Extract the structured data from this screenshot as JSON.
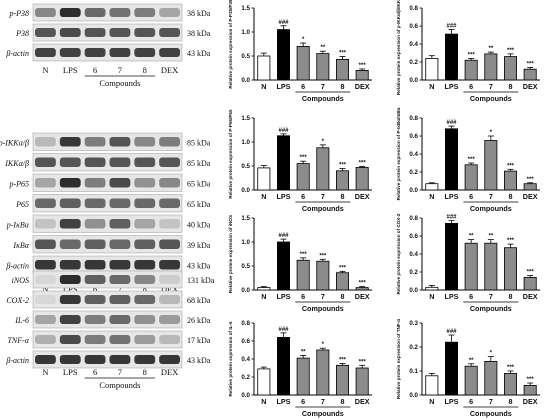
{
  "x_category_labels": [
    "N",
    "LPS",
    "6",
    "7",
    "8",
    "DEX"
  ],
  "compounds_label": "Compounds",
  "blots": [
    {
      "lanes": [
        "N",
        "LPS",
        "6",
        "7",
        "8",
        "DEX"
      ],
      "compounds_label": "Compounds",
      "rows": [
        {
          "label": "p-P38",
          "kda": "38 kDa"
        },
        {
          "label": "P38",
          "kda": "38 kDa"
        },
        {
          "label": "β-actin",
          "kda": "43 kDa"
        }
      ]
    },
    {
      "lanes": [
        "N",
        "LPS",
        "6",
        "7",
        "8",
        "DEX"
      ],
      "compounds_label": "Compounds",
      "rows": [
        {
          "label": "p-IKKα/β",
          "kda": "85 kDa"
        },
        {
          "label": "IKKα/β",
          "kda": "85 kDa"
        },
        {
          "label": "p-P65",
          "kda": "65 kDa"
        },
        {
          "label": "P65",
          "kda": "65 kDa"
        },
        {
          "label": "p-IκBα",
          "kda": "40 kDa"
        },
        {
          "label": "IκBα",
          "kda": "39 kDa"
        },
        {
          "label": "β-actin",
          "kda": "43 kDa"
        }
      ]
    },
    {
      "lanes": [
        "N",
        "LPS",
        "6",
        "7",
        "8",
        "DEX"
      ],
      "compounds_label": "Compounds",
      "rows": [
        {
          "label": "iNOS",
          "kda": "131 kDa"
        },
        {
          "label": "COX-2",
          "kda": "68 kDa"
        },
        {
          "label": "IL-6",
          "kda": "26 kDa"
        },
        {
          "label": "TNF-α",
          "kda": "17 kDa"
        },
        {
          "label": "β-actin",
          "kda": "43 kDa"
        }
      ]
    }
  ],
  "chart_data": [
    {
      "type": "bar",
      "ylabel": "Relative protein expression of P-P38/P38",
      "categories": [
        "N",
        "LPS",
        "6",
        "7",
        "8",
        "DEX"
      ],
      "values": [
        0.5,
        1.05,
        0.7,
        0.55,
        0.43,
        0.2
      ],
      "errors": [
        0.06,
        0.08,
        0.07,
        0.05,
        0.06,
        0.03
      ],
      "sig": [
        "",
        "###",
        "*",
        "**",
        "***",
        "***"
      ],
      "ylim": [
        0,
        1.5
      ],
      "yticks": [
        "0.0",
        "0.5",
        "1.0",
        "1.5"
      ],
      "xlabel": "Compounds"
    },
    {
      "type": "bar",
      "ylabel": "Relative protein expression of p-IKKα/β/IKKα/β",
      "categories": [
        "N",
        "LPS",
        "6",
        "7",
        "8",
        "DEX"
      ],
      "values": [
        0.24,
        0.51,
        0.22,
        0.29,
        0.26,
        0.12
      ],
      "errors": [
        0.03,
        0.05,
        0.02,
        0.02,
        0.03,
        0.02
      ],
      "sig": [
        "",
        "###",
        "***",
        "**",
        "***",
        "***"
      ],
      "ylim": [
        0,
        0.8
      ],
      "yticks": [
        "0.0",
        "0.2",
        "0.4",
        "0.6",
        "0.8"
      ],
      "xlabel": "Compounds"
    },
    {
      "type": "bar",
      "ylabel": "Relative protein expression of P-P65/P65",
      "categories": [
        "N",
        "LPS",
        "6",
        "7",
        "8",
        "DEX"
      ],
      "values": [
        0.46,
        1.13,
        0.55,
        0.88,
        0.4,
        0.47
      ],
      "errors": [
        0.05,
        0.04,
        0.05,
        0.06,
        0.05,
        0.02
      ],
      "sig": [
        "",
        "###",
        "***",
        "*",
        "***",
        "***"
      ],
      "ylim": [
        0,
        1.5
      ],
      "yticks": [
        "0.0",
        "0.5",
        "1.0",
        "1.5"
      ],
      "xlabel": "Compounds"
    },
    {
      "type": "bar",
      "ylabel": "Relative protein expression of P-IκBα/IκBα",
      "categories": [
        "N",
        "LPS",
        "6",
        "7",
        "8",
        "DEX"
      ],
      "values": [
        0.07,
        0.68,
        0.28,
        0.55,
        0.21,
        0.07
      ],
      "errors": [
        0.01,
        0.03,
        0.02,
        0.05,
        0.02,
        0.01
      ],
      "sig": [
        "",
        "###",
        "***",
        "*",
        "***",
        "***"
      ],
      "ylim": [
        0,
        0.8
      ],
      "yticks": [
        "0.0",
        "0.2",
        "0.4",
        "0.6",
        "0.8"
      ],
      "xlabel": "Compounds"
    },
    {
      "type": "bar",
      "ylabel": "Relative protein expression of iNOS",
      "categories": [
        "N",
        "LPS",
        "6",
        "7",
        "8",
        "DEX"
      ],
      "values": [
        0.05,
        1.0,
        0.62,
        0.6,
        0.36,
        0.05
      ],
      "errors": [
        0.02,
        0.06,
        0.05,
        0.04,
        0.03,
        0.02
      ],
      "sig": [
        "",
        "###",
        "***",
        "***",
        "***",
        "***"
      ],
      "ylim": [
        0,
        1.5
      ],
      "yticks": [
        "0.0",
        "0.5",
        "1.0",
        "1.5"
      ],
      "xlabel": "Compounds"
    },
    {
      "type": "bar",
      "ylabel": "Relative protein expression of COX-2",
      "categories": [
        "N",
        "LPS",
        "6",
        "7",
        "8",
        "DEX"
      ],
      "values": [
        0.03,
        0.74,
        0.52,
        0.52,
        0.47,
        0.14
      ],
      "errors": [
        0.02,
        0.03,
        0.04,
        0.04,
        0.04,
        0.02
      ],
      "sig": [
        "",
        "###",
        "**",
        "**",
        "***",
        "***"
      ],
      "ylim": [
        0,
        0.8
      ],
      "yticks": [
        "0.0",
        "0.2",
        "0.4",
        "0.6",
        "0.8"
      ],
      "xlabel": "Compounds"
    },
    {
      "type": "bar",
      "ylabel": "Relative protein expression of IL-6",
      "categories": [
        "N",
        "LPS",
        "6",
        "7",
        "8",
        "DEX"
      ],
      "values": [
        0.29,
        0.64,
        0.41,
        0.5,
        0.33,
        0.3
      ],
      "errors": [
        0.02,
        0.05,
        0.03,
        0.02,
        0.02,
        0.03
      ],
      "sig": [
        "",
        "###",
        "**",
        "*",
        "***",
        "***"
      ],
      "ylim": [
        0,
        0.8
      ],
      "yticks": [
        "0.0",
        "0.2",
        "0.4",
        "0.6",
        "0.8"
      ],
      "xlabel": "Compounds"
    },
    {
      "type": "bar",
      "ylabel": "Relative protein expression of TNF-α",
      "categories": [
        "N",
        "LPS",
        "6",
        "7",
        "8",
        "DEX"
      ],
      "values": [
        0.08,
        0.22,
        0.12,
        0.14,
        0.09,
        0.04
      ],
      "errors": [
        0.01,
        0.03,
        0.01,
        0.02,
        0.01,
        0.01
      ],
      "sig": [
        "",
        "###",
        "**",
        "*",
        "***",
        "***"
      ],
      "ylim": [
        0,
        0.3
      ],
      "yticks": [
        "0.0",
        "0.1",
        "0.2",
        "0.3"
      ],
      "xlabel": "Compounds"
    }
  ]
}
